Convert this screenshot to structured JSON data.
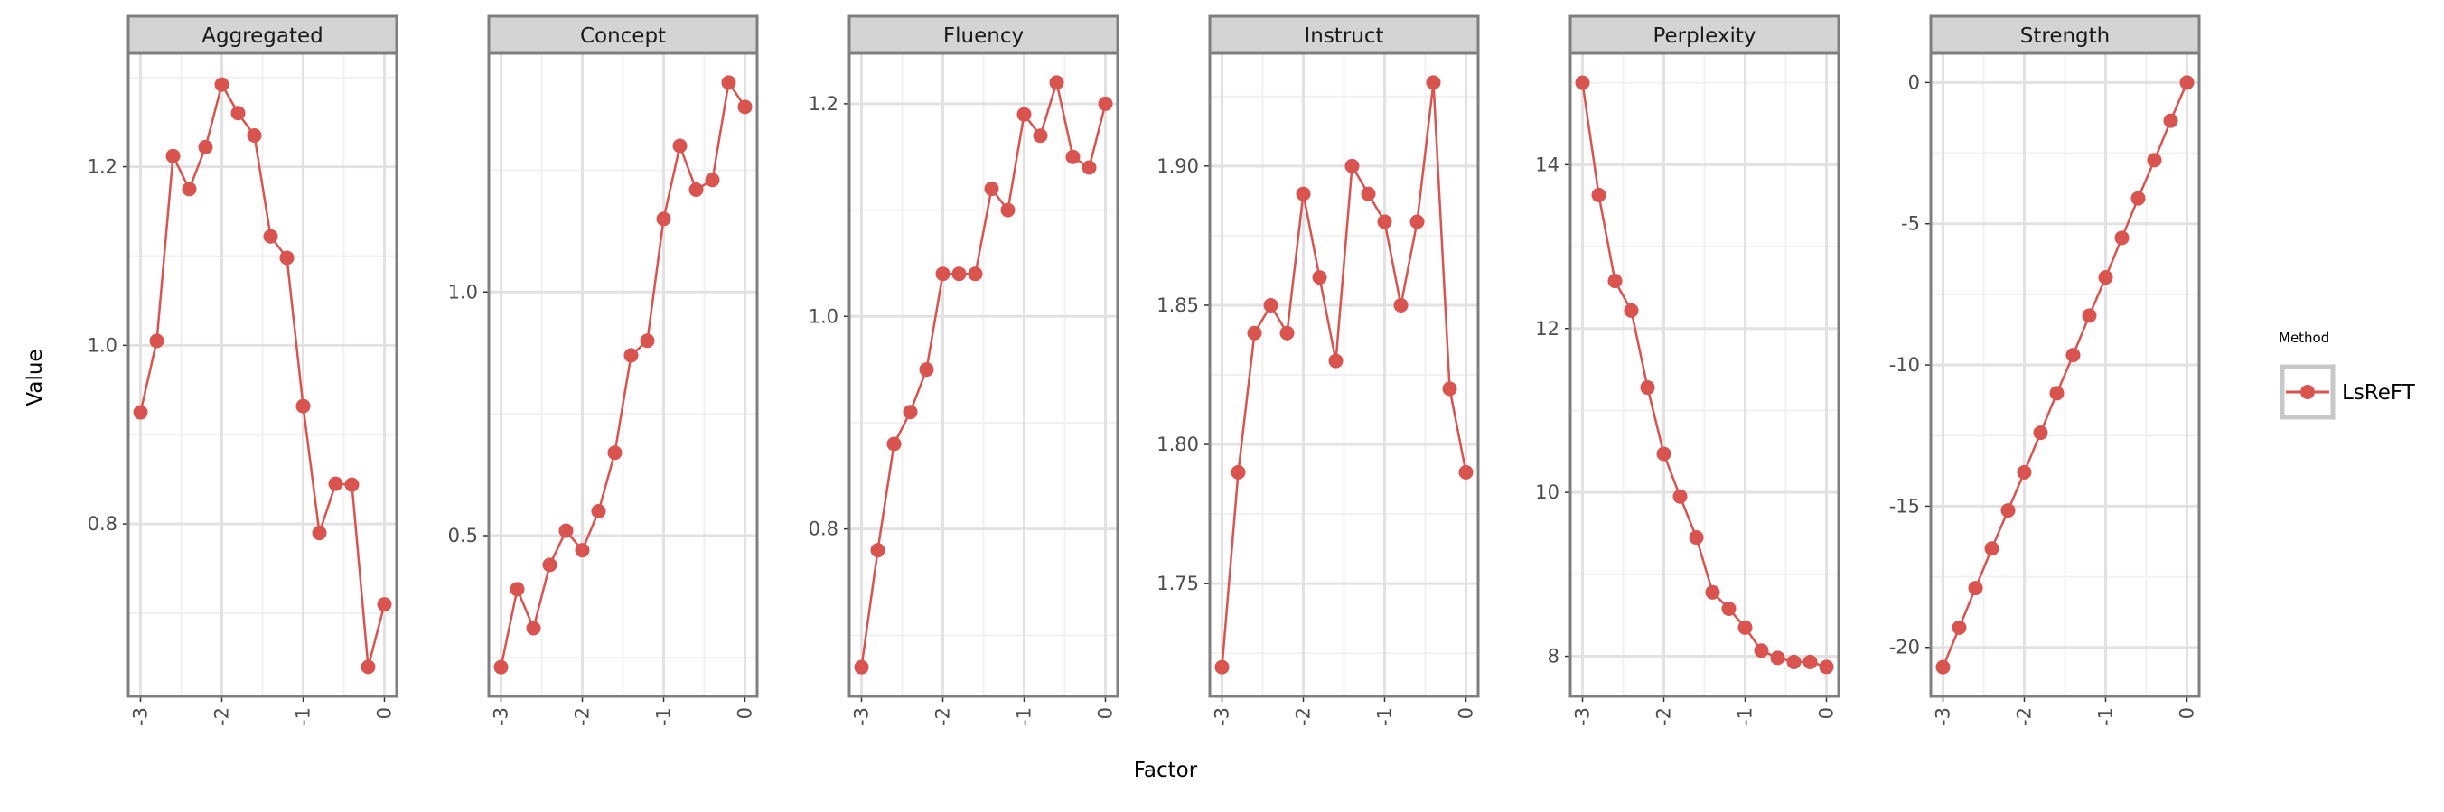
{
  "figure": {
    "xlabel": "Factor",
    "ylabel": "Value",
    "legend_title": "Method",
    "legend_label": "LsReFT",
    "series_color": "#d9534f"
  },
  "chart_data": [
    {
      "type": "line",
      "title": "Aggregated",
      "series": [
        {
          "name": "LsReFT",
          "x": [
            -3,
            -2.8,
            -2.6,
            -2.4,
            -2.2,
            -2,
            -1.8,
            -1.6,
            -1.4,
            -1.2,
            -1,
            -0.8,
            -0.6,
            -0.4,
            -0.2,
            0
          ],
          "values": [
            0.925,
            1.005,
            1.212,
            1.175,
            1.222,
            1.292,
            1.26,
            1.235,
            1.122,
            1.098,
            0.932,
            0.79,
            0.845,
            0.844,
            0.64,
            0.71
          ]
        }
      ],
      "xticks": [
        -3,
        -2,
        -1,
        0
      ],
      "xtick_labels": [
        "-3",
        "-2",
        "-1",
        "0"
      ],
      "yticks": [
        0.8,
        1.0,
        1.2
      ],
      "ytick_labels": [
        "0.8",
        "1.0",
        "1.2"
      ],
      "xlim": [
        -3.15,
        0.15
      ],
      "ylim": [
        0.607,
        1.327
      ],
      "grid": true
    },
    {
      "type": "line",
      "title": "Concept",
      "series": [
        {
          "name": "LsReFT",
          "x": [
            -3,
            -2.8,
            -2.6,
            -2.4,
            -2.2,
            -2,
            -1.8,
            -1.6,
            -1.4,
            -1.2,
            -1,
            -0.8,
            -0.6,
            -0.4,
            -0.2,
            0
          ],
          "values": [
            0.23,
            0.39,
            0.31,
            0.44,
            0.51,
            0.47,
            0.55,
            0.67,
            0.87,
            0.9,
            1.15,
            1.3,
            1.21,
            1.23,
            1.43,
            1.38
          ]
        }
      ],
      "xticks": [
        -3,
        -2,
        -1,
        0
      ],
      "xtick_labels": [
        "-3",
        "-2",
        "-1",
        "0"
      ],
      "yticks": [
        0.5,
        1.0
      ],
      "ytick_labels": [
        "0.5",
        "1.0"
      ],
      "xlim": [
        -3.15,
        0.15
      ],
      "ylim": [
        0.17,
        1.49
      ],
      "grid": true
    },
    {
      "type": "line",
      "title": "Fluency",
      "series": [
        {
          "name": "LsReFT",
          "x": [
            -3,
            -2.8,
            -2.6,
            -2.4,
            -2.2,
            -2,
            -1.8,
            -1.6,
            -1.4,
            -1.2,
            -1,
            -0.8,
            -0.6,
            -0.4,
            -0.2,
            0
          ],
          "values": [
            0.67,
            0.78,
            0.88,
            0.91,
            0.95,
            1.04,
            1.04,
            1.04,
            1.12,
            1.1,
            1.19,
            1.17,
            1.22,
            1.15,
            1.14,
            1.2
          ]
        }
      ],
      "xticks": [
        -3,
        -2,
        -1,
        0
      ],
      "xtick_labels": [
        "-3",
        "-2",
        "-1",
        "0"
      ],
      "yticks": [
        0.8,
        1.0,
        1.2
      ],
      "ytick_labels": [
        "0.8",
        "1.0",
        "1.2"
      ],
      "xlim": [
        -3.15,
        0.15
      ],
      "ylim": [
        0.6425,
        1.2475
      ],
      "grid": true
    },
    {
      "type": "line",
      "title": "Instruct",
      "series": [
        {
          "name": "LsReFT",
          "x": [
            -3,
            -2.8,
            -2.6,
            -2.4,
            -2.2,
            -2,
            -1.8,
            -1.6,
            -1.4,
            -1.2,
            -1,
            -0.8,
            -0.6,
            -0.4,
            -0.2,
            0
          ],
          "values": [
            1.72,
            1.79,
            1.84,
            1.85,
            1.84,
            1.89,
            1.86,
            1.83,
            1.9,
            1.89,
            1.88,
            1.85,
            1.88,
            1.93,
            1.82,
            1.79
          ]
        }
      ],
      "xticks": [
        -3,
        -2,
        -1,
        0
      ],
      "xtick_labels": [
        "-3",
        "-2",
        "-1",
        "0"
      ],
      "yticks": [
        1.75,
        1.8,
        1.85,
        1.9
      ],
      "ytick_labels": [
        "1.75",
        "1.80",
        "1.85",
        "1.90"
      ],
      "xlim": [
        -3.15,
        0.15
      ],
      "ylim": [
        1.7095,
        1.9405
      ],
      "grid": true
    },
    {
      "type": "line",
      "title": "Perplexity",
      "series": [
        {
          "name": "LsReFT",
          "x": [
            -3,
            -2.8,
            -2.6,
            -2.4,
            -2.2,
            -2,
            -1.8,
            -1.6,
            -1.4,
            -1.2,
            -1,
            -0.8,
            -0.6,
            -0.4,
            -0.2,
            0
          ],
          "values": [
            15.0,
            13.63,
            12.58,
            12.22,
            11.28,
            10.47,
            9.95,
            9.45,
            8.78,
            8.58,
            8.35,
            8.07,
            7.98,
            7.93,
            7.93,
            7.87
          ]
        }
      ],
      "xticks": [
        -3,
        -2,
        -1,
        0
      ],
      "xtick_labels": [
        "-3",
        "-2",
        "-1",
        "0"
      ],
      "yticks": [
        8,
        10,
        12,
        14
      ],
      "ytick_labels": [
        "8",
        "10",
        "12",
        "14"
      ],
      "xlim": [
        -3.15,
        0.15
      ],
      "ylim": [
        7.51,
        15.36
      ],
      "grid": true
    },
    {
      "type": "line",
      "title": "Strength",
      "series": [
        {
          "name": "LsReFT",
          "x": [
            -3,
            -2.8,
            -2.6,
            -2.4,
            -2.2,
            -2,
            -1.8,
            -1.6,
            -1.4,
            -1.2,
            -1,
            -0.8,
            -0.6,
            -0.4,
            -0.2,
            0
          ],
          "values": [
            -20.7,
            -19.3,
            -17.9,
            -16.5,
            -15.15,
            -13.8,
            -12.4,
            -11.0,
            -9.65,
            -8.25,
            -6.9,
            -5.5,
            -4.1,
            -2.75,
            -1.35,
            0
          ]
        }
      ],
      "xticks": [
        -3,
        -2,
        -1,
        0
      ],
      "xtick_labels": [
        "-3",
        "-2",
        "-1",
        "0"
      ],
      "yticks": [
        -20,
        -15,
        -10,
        -5,
        0
      ],
      "ytick_labels": [
        "-20",
        "-15",
        "-10",
        "-5",
        "0"
      ],
      "xlim": [
        -3.15,
        0.15
      ],
      "ylim": [
        -21.735,
        1.035
      ],
      "grid": true
    }
  ]
}
